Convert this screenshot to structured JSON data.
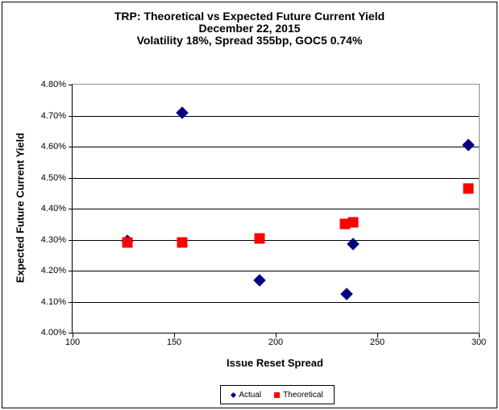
{
  "chart_data": {
    "type": "scatter",
    "title_lines": [
      "TRP: Theoretical vs Expected Future Current Yield",
      "December 22, 2015",
      "Volatility 18%, Spread 355bp, GOC5 0.74%"
    ],
    "xlabel": "Issue Reset Spread",
    "ylabel": "Expected Future Current Yield",
    "xlim": [
      100,
      300
    ],
    "ylim": [
      4.0,
      4.8
    ],
    "grid": true,
    "legend_position": "bottom-center",
    "xticks": [
      {
        "v": 100,
        "label": "100"
      },
      {
        "v": 150,
        "label": "150"
      },
      {
        "v": 200,
        "label": "200"
      },
      {
        "v": 250,
        "label": "250"
      },
      {
        "v": 300,
        "label": "300"
      }
    ],
    "yticks": [
      {
        "v": 4.0,
        "label": "4.00%"
      },
      {
        "v": 4.1,
        "label": "4.10%"
      },
      {
        "v": 4.2,
        "label": "4.20%"
      },
      {
        "v": 4.3,
        "label": "4.30%"
      },
      {
        "v": 4.4,
        "label": "4.40%"
      },
      {
        "v": 4.5,
        "label": "4.50%"
      },
      {
        "v": 4.6,
        "label": "4.60%"
      },
      {
        "v": 4.7,
        "label": "4.70%"
      },
      {
        "v": 4.8,
        "label": "4.80%"
      }
    ],
    "series": [
      {
        "name": "Actual",
        "marker": "diamond",
        "color": "#000080",
        "points": [
          {
            "x": 127,
            "y": 4.295
          },
          {
            "x": 154,
            "y": 4.71
          },
          {
            "x": 192,
            "y": 4.17
          },
          {
            "x": 235,
            "y": 4.125
          },
          {
            "x": 238,
            "y": 4.285
          },
          {
            "x": 295,
            "y": 4.605
          }
        ]
      },
      {
        "name": "Theoretical",
        "marker": "square",
        "color": "#ff0000",
        "points": [
          {
            "x": 127,
            "y": 4.29
          },
          {
            "x": 154,
            "y": 4.29
          },
          {
            "x": 192,
            "y": 4.305
          },
          {
            "x": 234,
            "y": 4.35
          },
          {
            "x": 238,
            "y": 4.355
          },
          {
            "x": 295,
            "y": 4.465
          }
        ]
      }
    ]
  },
  "colors": {
    "actual": "#000080",
    "theoretical": "#ff0000",
    "gridline": "#000000",
    "plot_border": "#8c8c8c",
    "frame_border": "#000000"
  }
}
